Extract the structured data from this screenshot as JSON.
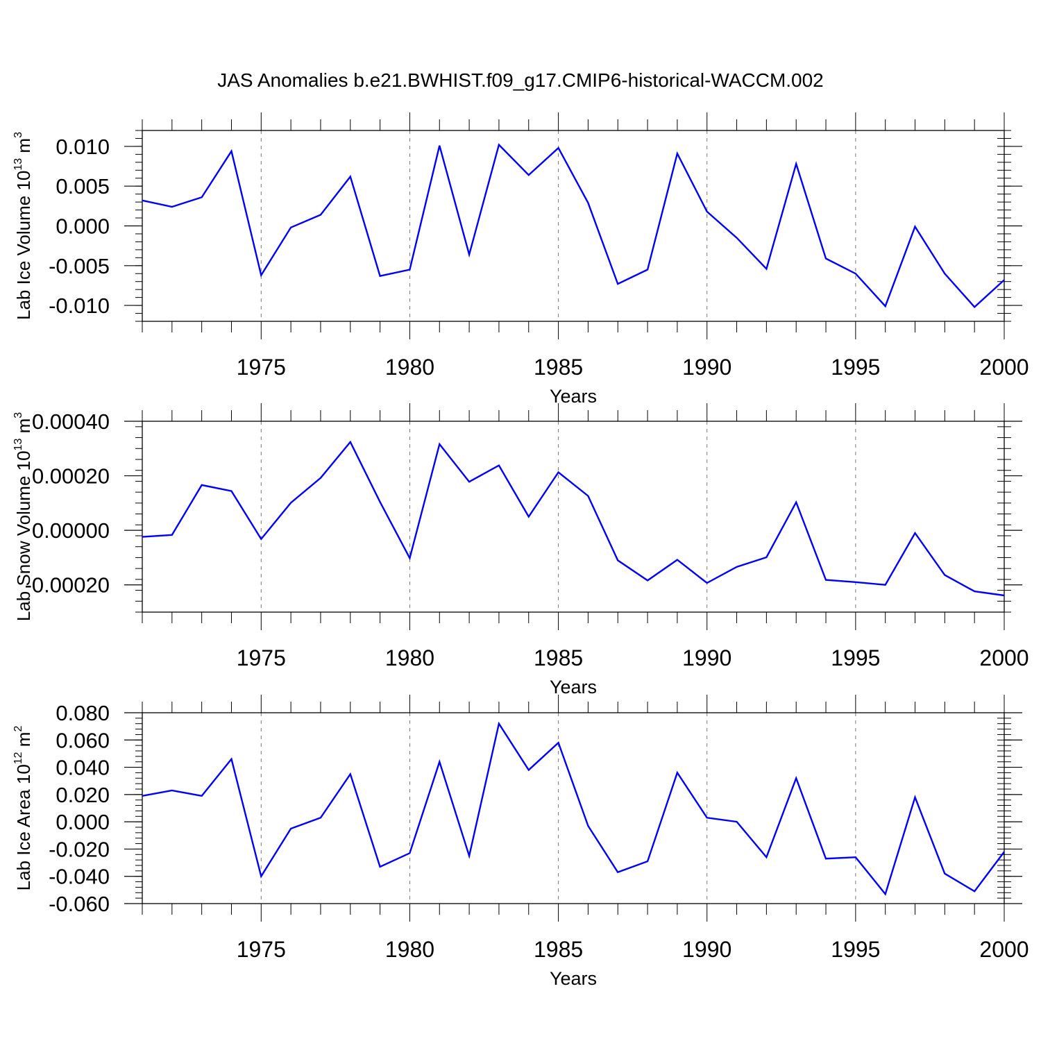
{
  "figure": {
    "title": "JAS Anomalies b.e21.BWHIST.f09_g17.CMIP6-historical-WACCM.002"
  },
  "style": {
    "line_color": "#0000ff",
    "axis_color": "#000000",
    "grid_color": "#777777"
  },
  "chart_data": [
    {
      "type": "line",
      "title": "JAS Anomalies b.e21.BWHIST.f09_g17.CMIP6-historical-WACCM.002",
      "xlabel": "Years",
      "ylabel": {
        "main": "Lab Ice Volume 10",
        "sup": "13",
        "unit": " m",
        "unit_sup": "3"
      },
      "xlim": [
        1971,
        2000
      ],
      "ylim": [
        -0.012,
        0.012
      ],
      "xticks": [
        1975,
        1980,
        1985,
        1990,
        1995,
        2000
      ],
      "yticks": [
        -0.01,
        -0.005,
        0.0,
        0.005,
        0.01
      ],
      "ytick_labels": [
        "-0.010",
        "-0.005",
        "0.000",
        "0.005",
        "0.010"
      ],
      "x": [
        1971,
        1972,
        1973,
        1974,
        1975,
        1976,
        1977,
        1978,
        1979,
        1980,
        1981,
        1982,
        1983,
        1984,
        1985,
        1986,
        1987,
        1988,
        1989,
        1990,
        1991,
        1992,
        1993,
        1994,
        1995,
        1996,
        1997,
        1998,
        1999,
        2000
      ],
      "series": [
        {
          "name": "Lab Ice Volume",
          "values": [
            0.0032,
            0.0024,
            0.0036,
            0.0094,
            -0.0062,
            -0.0002,
            0.0014,
            0.0062,
            -0.0063,
            -0.0055,
            0.0101,
            -0.0036,
            0.0102,
            0.0064,
            0.0098,
            0.0029,
            -0.0073,
            -0.0055,
            0.0091,
            0.0018,
            -0.0015,
            -0.0054,
            0.0078,
            -0.0041,
            -0.006,
            -0.0101,
            -0.0001,
            -0.006,
            -0.0102,
            -0.0068
          ]
        }
      ]
    },
    {
      "type": "line",
      "xlabel": "Years",
      "ylabel": {
        "main": "Lab Snow Volume 10",
        "sup": "13",
        "unit": " m",
        "unit_sup": "3"
      },
      "xlim": [
        1971,
        2000
      ],
      "ylim": [
        -0.0003,
        0.0004
      ],
      "xticks": [
        1975,
        1980,
        1985,
        1990,
        1995,
        2000
      ],
      "yticks": [
        -0.0002,
        0.0,
        0.0002,
        0.0004
      ],
      "ytick_labels": [
        "-0.00020",
        "0.00000",
        "0.00020",
        "0.00040"
      ],
      "x": [
        1971,
        1972,
        1973,
        1974,
        1975,
        1976,
        1977,
        1978,
        1979,
        1980,
        1981,
        1982,
        1983,
        1984,
        1985,
        1986,
        1987,
        1988,
        1989,
        1990,
        1991,
        1992,
        1993,
        1994,
        1995,
        1996,
        1997,
        1998,
        1999,
        2000
      ],
      "series": [
        {
          "name": "Lab Snow Volume",
          "values": [
            -2.4e-05,
            -1.7e-05,
            0.000166,
            0.000144,
            -3.2e-05,
            0.000101,
            0.000192,
            0.000324,
            0.000104,
            -0.000102,
            0.000316,
            0.000178,
            0.000238,
            5e-05,
            0.000213,
            0.000126,
            -0.00011,
            -0.000184,
            -0.000108,
            -0.000193,
            -0.000134,
            -9.9e-05,
            0.000103,
            -0.000182,
            -0.00019,
            -0.0002,
            -1e-05,
            -0.000164,
            -0.000224,
            -0.000239
          ]
        }
      ]
    },
    {
      "type": "line",
      "xlabel": "Years",
      "ylabel": {
        "main": "Lab Ice Area 10",
        "sup": "12",
        "unit": " m",
        "unit_sup": "2"
      },
      "xlim": [
        1971,
        2000
      ],
      "ylim": [
        -0.06,
        0.08
      ],
      "xticks": [
        1975,
        1980,
        1985,
        1990,
        1995,
        2000
      ],
      "yticks": [
        -0.06,
        -0.04,
        -0.02,
        0.0,
        0.02,
        0.04,
        0.06,
        0.08
      ],
      "ytick_labels": [
        "-0.060",
        "-0.040",
        "-0.020",
        "0.000",
        "0.020",
        "0.040",
        "0.060",
        "0.080"
      ],
      "x": [
        1971,
        1972,
        1973,
        1974,
        1975,
        1976,
        1977,
        1978,
        1979,
        1980,
        1981,
        1982,
        1983,
        1984,
        1985,
        1986,
        1987,
        1988,
        1989,
        1990,
        1991,
        1992,
        1993,
        1994,
        1995,
        1996,
        1997,
        1998,
        1999,
        2000
      ],
      "series": [
        {
          "name": "Lab Ice Area",
          "values": [
            0.019,
            0.023,
            0.019,
            0.046,
            -0.04,
            -0.005,
            0.003,
            0.035,
            -0.033,
            -0.023,
            0.044,
            -0.025,
            0.072,
            0.038,
            0.058,
            -0.003,
            -0.037,
            -0.029,
            0.036,
            0.003,
            0.0,
            -0.026,
            0.032,
            -0.027,
            -0.026,
            -0.053,
            0.018,
            -0.038,
            -0.051,
            -0.022
          ]
        }
      ]
    }
  ]
}
